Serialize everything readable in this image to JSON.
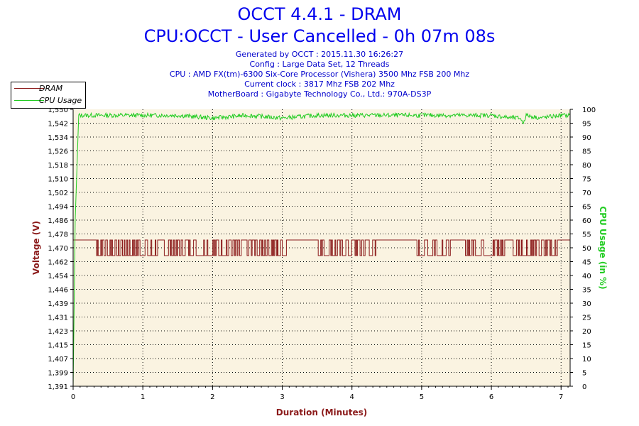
{
  "header": {
    "title": "OCCT 4.4.1 - DRAM",
    "subtitle": "CPU:OCCT - User Cancelled - 0h 07m 08s",
    "info_lines": [
      "Generated by OCCT : 2015.11.30 16:26:27",
      "Config : Large Data Set, 12 Threads",
      "CPU : AMD FX(tm)-6300 Six-Core Processor (Vishera) 3500 Mhz FSB 200 Mhz",
      "Current clock : 3817 Mhz FSB 202 Mhz",
      "MotherBoard : Gigabyte Technology Co., Ltd.: 970A-DS3P"
    ]
  },
  "colors": {
    "plot_background": "#faf3e1",
    "dram": "#8b1a1a",
    "cpu_usage": "#22cc22",
    "title": "#0000ee"
  },
  "chart_data": {
    "type": "line",
    "xlabel": "Duration (Minutes)",
    "ylabel": "Voltage (V)",
    "y2label": "CPU Usage (in %)",
    "xlim": [
      0,
      7.13
    ],
    "ylim": [
      1.391,
      1.55
    ],
    "y2lim": [
      0,
      100
    ],
    "x_ticks": [
      "0",
      "1",
      "2",
      "3",
      "4",
      "5",
      "6",
      "7"
    ],
    "y_ticks": [
      "1,391",
      "1,399",
      "1,407",
      "1,415",
      "1,423",
      "1,431",
      "1,439",
      "1,446",
      "1,454",
      "1,462",
      "1,470",
      "1,478",
      "1,486",
      "1,494",
      "1,502",
      "1,510",
      "1,518",
      "1,526",
      "1,534",
      "1,542",
      "1,550"
    ],
    "y_tick_values": [
      1.391,
      1.399,
      1.407,
      1.415,
      1.423,
      1.431,
      1.439,
      1.446,
      1.454,
      1.462,
      1.47,
      1.478,
      1.486,
      1.494,
      1.502,
      1.51,
      1.518,
      1.526,
      1.534,
      1.542,
      1.55
    ],
    "y2_ticks": [
      "0",
      "5",
      "10",
      "15",
      "20",
      "25",
      "30",
      "35",
      "40",
      "45",
      "50",
      "55",
      "60",
      "65",
      "70",
      "75",
      "80",
      "85",
      "90",
      "95",
      "100"
    ],
    "grid": true,
    "legend_position": "top-left",
    "series": [
      {
        "name": "DRAM",
        "axis": "left",
        "baseline": 1.475,
        "low": 1.466,
        "oscillation_ranges": [
          [
            0.33,
            3.05
          ],
          [
            3.5,
            4.35
          ],
          [
            4.92,
            5.45
          ],
          [
            5.6,
            6.2
          ],
          [
            6.3,
            6.95
          ]
        ],
        "x": [
          0,
          0.33,
          3.05,
          3.5,
          4.35,
          4.92,
          5.45,
          5.6,
          6.2,
          6.3,
          6.95,
          7.13
        ],
        "values": [
          1.475,
          1.475,
          1.475,
          1.475,
          1.475,
          1.475,
          1.475,
          1.475,
          1.475,
          1.475,
          1.475,
          1.475
        ]
      },
      {
        "name": "CPU Usage",
        "axis": "right",
        "x": [
          0,
          0.03,
          0.08,
          0.5,
          1.0,
          1.5,
          2.0,
          2.5,
          3.0,
          3.5,
          4.0,
          4.5,
          5.0,
          5.5,
          6.0,
          6.3,
          6.42,
          6.45,
          6.5,
          6.7,
          7.0,
          7.13
        ],
        "values": [
          0,
          60,
          98,
          98,
          98,
          98,
          97,
          98,
          97,
          98,
          98,
          98,
          98,
          98,
          98,
          97,
          97,
          95,
          98,
          97,
          98,
          98
        ]
      }
    ]
  }
}
